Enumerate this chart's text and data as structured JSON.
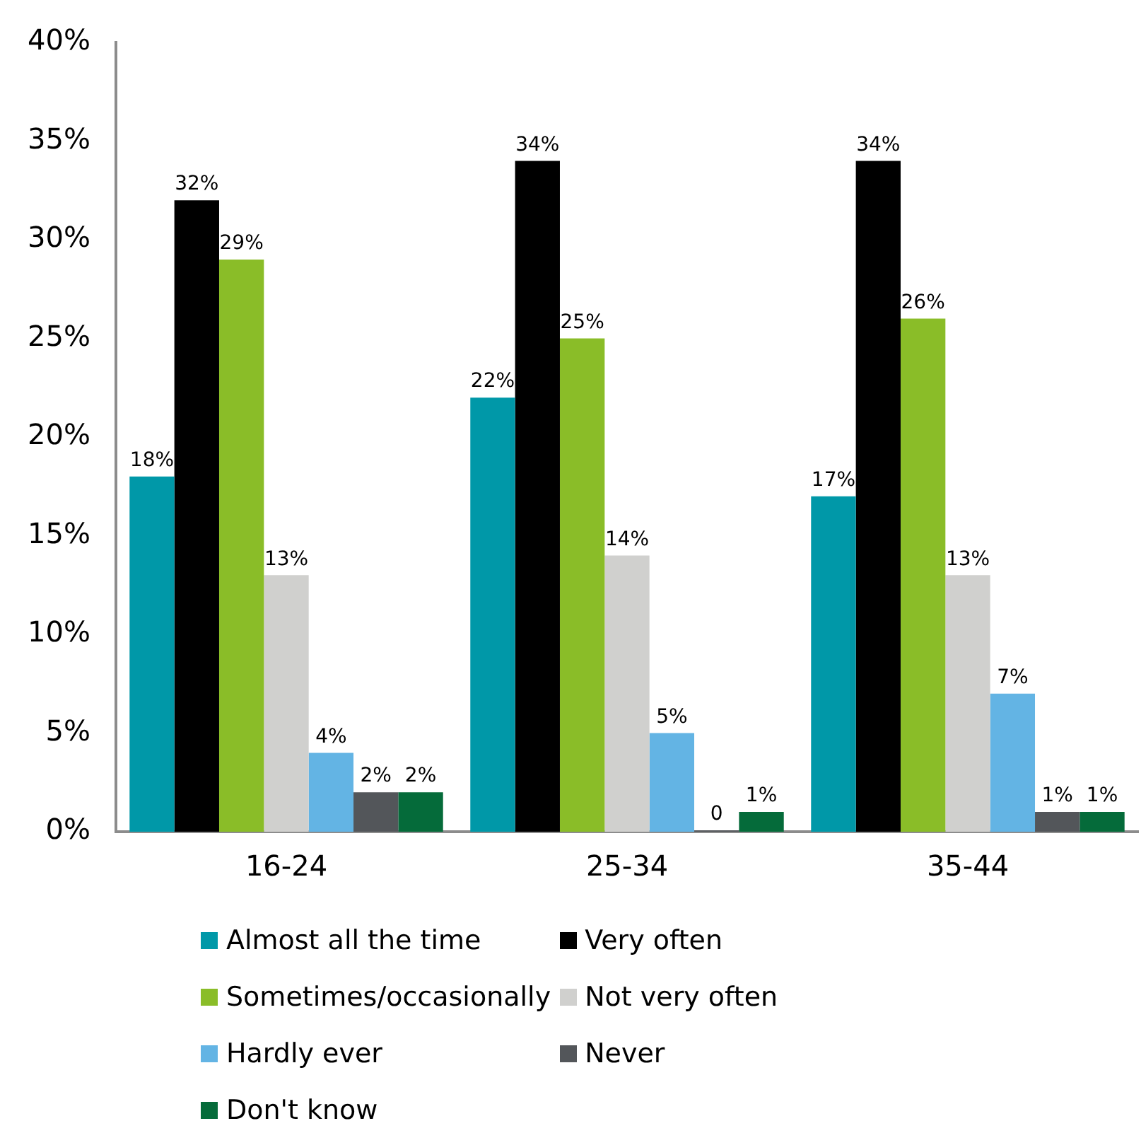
{
  "chart_data": {
    "type": "bar",
    "categories": [
      "16-24",
      "25-34",
      "35-44"
    ],
    "series": [
      {
        "name": "Almost all the time",
        "color": "#0098a8",
        "values": [
          18,
          22,
          17
        ],
        "value_labels": [
          "18%",
          "22%",
          "17%"
        ]
      },
      {
        "name": "Very often",
        "color": "#000000",
        "values": [
          32,
          34,
          34
        ],
        "value_labels": [
          "32%",
          "34%",
          "34%"
        ]
      },
      {
        "name": "Sometimes/occasionally",
        "color": "#8abd28",
        "values": [
          29,
          25,
          26
        ],
        "value_labels": [
          "29%",
          "25%",
          "26%"
        ]
      },
      {
        "name": "Not very often",
        "color": "#d0d0ce",
        "values": [
          13,
          14,
          13
        ],
        "value_labels": [
          "13%",
          "14%",
          "13%"
        ]
      },
      {
        "name": "Hardly ever",
        "color": "#63b4e4",
        "values": [
          4,
          5,
          7
        ],
        "value_labels": [
          "4%",
          "5%",
          "7%"
        ]
      },
      {
        "name": "Never",
        "color": "#53565a",
        "values": [
          2,
          0,
          1
        ],
        "value_labels": [
          "2%",
          "0",
          "1%"
        ]
      },
      {
        "name": "Don't know",
        "color": "#056b3a",
        "values": [
          2,
          1,
          1
        ],
        "value_labels": [
          "2%",
          "1%",
          "1%"
        ]
      }
    ],
    "ylim": [
      0,
      40
    ],
    "yticks": [
      {
        "value": 0,
        "label": "0%"
      },
      {
        "value": 5,
        "label": "5%"
      },
      {
        "value": 10,
        "label": "10%"
      },
      {
        "value": 15,
        "label": "15%"
      },
      {
        "value": 20,
        "label": "20%"
      },
      {
        "value": 25,
        "label": "25%"
      },
      {
        "value": 30,
        "label": "30%"
      },
      {
        "value": 35,
        "label": "35%"
      },
      {
        "value": 40,
        "label": "40%"
      }
    ],
    "legend": "bottom"
  }
}
